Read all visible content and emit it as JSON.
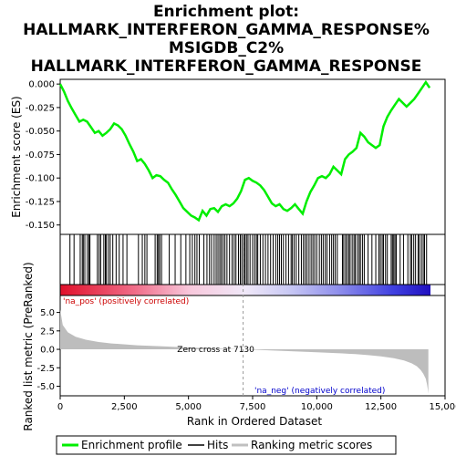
{
  "chart_data": {
    "type": "line",
    "title_lines": [
      "Enrichment plot:",
      "HALLMARK_INTERFERON_GAMMA_RESPONSE%",
      "MSIGDB_C2%",
      "HALLMARK_INTERFERON_GAMMA_RESPONSE"
    ],
    "top_panel": {
      "ylabel": "Enrichment score (ES)",
      "ylim": [
        -0.16,
        0.005
      ],
      "yticks": [
        0.0,
        -0.025,
        -0.05,
        -0.075,
        -0.1,
        -0.125,
        -0.15
      ],
      "ytick_labels": [
        "0.000",
        "-0.025",
        "-0.050",
        "-0.075",
        "-0.100",
        "-0.125",
        "-0.150"
      ],
      "line_color": "#00ee00",
      "series": [
        {
          "x": [
            0,
            150,
            300,
            450,
            600,
            750,
            900,
            1050,
            1200,
            1350,
            1500,
            1650,
            1800,
            1950,
            2100,
            2250,
            2400,
            2550,
            2700,
            2850,
            3000,
            3150,
            3300,
            3450,
            3600,
            3750,
            3900,
            4050,
            4200,
            4350,
            4500,
            4650,
            4800,
            4950,
            5100,
            5250,
            5400,
            5550,
            5700,
            5850,
            6000,
            6150,
            6300,
            6450,
            6600,
            6750,
            6900,
            7050,
            7200,
            7350,
            7500,
            7650,
            7800,
            7950,
            8100,
            8250,
            8400,
            8550,
            8700,
            8850,
            9000,
            9150,
            9300,
            9450,
            9600,
            9750,
            9900,
            10050,
            10200,
            10350,
            10500,
            10650,
            10800,
            10950,
            11100,
            11250,
            11400,
            11550,
            11700,
            11850,
            12000,
            12150,
            12300,
            12450,
            12600,
            12750,
            12900,
            13050,
            13200,
            13350,
            13500,
            13650,
            13800,
            13950,
            14100,
            14250,
            14400
          ],
          "y": [
            0.0,
            -0.008,
            -0.018,
            -0.026,
            -0.033,
            -0.04,
            -0.038,
            -0.04,
            -0.046,
            -0.052,
            -0.05,
            -0.055,
            -0.052,
            -0.048,
            -0.042,
            -0.044,
            -0.048,
            -0.055,
            -0.064,
            -0.072,
            -0.082,
            -0.08,
            -0.085,
            -0.092,
            -0.1,
            -0.097,
            -0.098,
            -0.102,
            -0.105,
            -0.112,
            -0.118,
            -0.125,
            -0.132,
            -0.136,
            -0.14,
            -0.142,
            -0.145,
            -0.135,
            -0.14,
            -0.133,
            -0.132,
            -0.136,
            -0.13,
            -0.128,
            -0.13,
            -0.127,
            -0.122,
            -0.114,
            -0.102,
            -0.1,
            -0.103,
            -0.105,
            -0.108,
            -0.113,
            -0.12,
            -0.127,
            -0.13,
            -0.128,
            -0.133,
            -0.135,
            -0.132,
            -0.128,
            -0.133,
            -0.138,
            -0.125,
            -0.115,
            -0.108,
            -0.1,
            -0.098,
            -0.1,
            -0.096,
            -0.088,
            -0.092,
            -0.096,
            -0.08,
            -0.075,
            -0.072,
            -0.068,
            -0.052,
            -0.056,
            -0.062,
            -0.065,
            -0.068,
            -0.065,
            -0.045,
            -0.035,
            -0.028,
            -0.022,
            -0.016,
            -0.02,
            -0.024,
            -0.02,
            -0.016,
            -0.01,
            -0.004,
            0.002,
            -0.004
          ]
        }
      ]
    },
    "hits_panel": {
      "hit_positions": [
        380,
        540,
        780,
        860,
        900,
        960,
        1060,
        1120,
        1160,
        1450,
        1520,
        1580,
        1700,
        1760,
        1800,
        1880,
        1950,
        2050,
        2180,
        2300,
        2450,
        2600,
        3050,
        3200,
        3300,
        3380,
        3700,
        3780,
        3830,
        3880,
        3950,
        4250,
        4480,
        4700,
        4900,
        5050,
        5150,
        5250,
        5330,
        5420,
        5600,
        5720,
        5820,
        5900,
        6000,
        6080,
        6150,
        6220,
        6280,
        6350,
        6420,
        6500,
        6600,
        6700,
        6780,
        6850,
        6950,
        7020,
        7080,
        7150,
        7200,
        7260,
        7320,
        7400,
        7500,
        7580,
        7650,
        7700,
        7800,
        7900,
        8000,
        8100,
        8200,
        8300,
        8400,
        8480,
        8550,
        8620,
        8700,
        8800,
        8900,
        9000,
        9050,
        9120,
        9200,
        9300,
        9400,
        9480,
        9550,
        9620,
        9700,
        9780,
        9850,
        9920,
        10000,
        10100,
        10180,
        10250,
        10330,
        10400,
        10500,
        10580,
        10650,
        10720,
        10800,
        11000,
        11050,
        11120,
        11180,
        11250,
        11300,
        11380,
        11450,
        11500,
        11580,
        11650,
        11700,
        11780,
        11850,
        12000,
        12150,
        12300,
        12420,
        12480,
        12550,
        12600,
        12680,
        12750,
        12900,
        12950,
        13000,
        13050,
        13100,
        13250,
        13380,
        13550,
        13650,
        13700,
        13780,
        13850,
        13950,
        14000,
        14080,
        14150,
        14200,
        14280
      ]
    },
    "bottom_panel": {
      "ylabel": "Ranked list metric (PreRanked)",
      "xlabel": "Rank in Ordered Dataset",
      "ylim": [
        -6.3,
        7.3
      ],
      "yticks": [
        5.0,
        2.5,
        0.0,
        -2.5,
        -5.0
      ],
      "ytick_labels": [
        "5.0",
        "2.5",
        "0.0",
        "-2.5",
        "-5.0"
      ],
      "xlim": [
        0,
        15000
      ],
      "xticks": [
        0,
        2500,
        5000,
        7500,
        10000,
        12500,
        15000
      ],
      "xtick_labels": [
        "0",
        "2,500",
        "5,000",
        "7,500",
        "10,000",
        "12,500",
        "15,000"
      ],
      "metric_curve": {
        "x": [
          0,
          100,
          300,
          600,
          1000,
          1500,
          2000,
          3000,
          4000,
          5000,
          6000,
          7130,
          8000,
          9000,
          10000,
          11000,
          11500,
          12000,
          12500,
          13000,
          13400,
          13700,
          13900,
          14050,
          14150,
          14250,
          14300,
          14330,
          14350
        ],
        "y": [
          5.4,
          3.3,
          2.3,
          1.7,
          1.3,
          1.0,
          0.8,
          0.55,
          0.4,
          0.25,
          0.12,
          0.0,
          -0.12,
          -0.25,
          -0.4,
          -0.55,
          -0.65,
          -0.78,
          -0.95,
          -1.2,
          -1.5,
          -1.9,
          -2.3,
          -2.8,
          -3.3,
          -4.0,
          -4.8,
          -5.5,
          -6.0
        ]
      },
      "zero_cross_label": "Zero cross at 7130",
      "zero_cross": 7130,
      "pos_label": "'na_pos' (positively correlated)",
      "neg_label": "'na_neg' (negatively correlated)",
      "pos_color": "#cc0000",
      "neg_color": "#0000cc"
    },
    "legend": [
      {
        "label": "Enrichment profile",
        "color": "#00ee00"
      },
      {
        "label": "Hits",
        "color": "#000000"
      },
      {
        "label": "Ranking metric scores",
        "color": "#c0c0c0"
      }
    ]
  }
}
